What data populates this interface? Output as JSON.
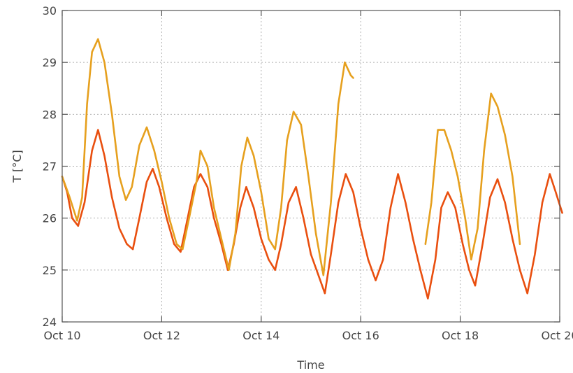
{
  "chart_data": {
    "type": "line",
    "title": "",
    "xlabel": "Time",
    "ylabel": "T [°C]",
    "xlim": [
      10,
      20
    ],
    "ylim": [
      24,
      30
    ],
    "x_ticks": [
      10,
      12,
      14,
      16,
      18,
      20
    ],
    "x_tick_labels": [
      "Oct 10",
      "Oct 12",
      "Oct 14",
      "Oct 16",
      "Oct 18",
      "Oct 20"
    ],
    "y_ticks": [
      24,
      25,
      26,
      27,
      28,
      29,
      30
    ],
    "y_tick_labels": [
      "24",
      "25",
      "26",
      "27",
      "28",
      "29",
      "30"
    ],
    "grid": true,
    "series": [
      {
        "color": "#e94f0f",
        "points": [
          [
            10.0,
            26.8
          ],
          [
            10.1,
            26.5
          ],
          [
            10.2,
            26.0
          ],
          [
            10.32,
            25.85
          ],
          [
            10.45,
            26.3
          ],
          [
            10.6,
            27.3
          ],
          [
            10.72,
            27.7
          ],
          [
            10.85,
            27.2
          ],
          [
            11.0,
            26.4
          ],
          [
            11.15,
            25.8
          ],
          [
            11.3,
            25.5
          ],
          [
            11.42,
            25.4
          ],
          [
            11.55,
            26.0
          ],
          [
            11.7,
            26.7
          ],
          [
            11.82,
            26.95
          ],
          [
            11.95,
            26.6
          ],
          [
            12.1,
            26.0
          ],
          [
            12.25,
            25.5
          ],
          [
            12.38,
            25.35
          ],
          [
            12.5,
            25.9
          ],
          [
            12.65,
            26.6
          ],
          [
            12.78,
            26.85
          ],
          [
            12.92,
            26.6
          ],
          [
            13.05,
            26.0
          ],
          [
            13.2,
            25.5
          ],
          [
            13.33,
            25.0
          ],
          [
            13.45,
            25.5
          ],
          [
            13.58,
            26.2
          ],
          [
            13.7,
            26.6
          ],
          [
            13.85,
            26.2
          ],
          [
            14.0,
            25.6
          ],
          [
            14.15,
            25.2
          ],
          [
            14.28,
            25.0
          ],
          [
            14.4,
            25.5
          ],
          [
            14.55,
            26.3
          ],
          [
            14.7,
            26.6
          ],
          [
            14.85,
            26.0
          ],
          [
            15.0,
            25.3
          ],
          [
            15.15,
            24.9
          ],
          [
            15.28,
            24.55
          ],
          [
            15.4,
            25.3
          ],
          [
            15.55,
            26.3
          ],
          [
            15.7,
            26.85
          ],
          [
            15.85,
            26.5
          ],
          [
            16.0,
            25.8
          ],
          [
            16.15,
            25.2
          ],
          [
            16.3,
            24.8
          ],
          [
            16.45,
            25.2
          ],
          [
            16.6,
            26.2
          ],
          [
            16.75,
            26.85
          ],
          [
            16.9,
            26.3
          ],
          [
            17.05,
            25.6
          ],
          [
            17.2,
            25.0
          ],
          [
            17.35,
            24.45
          ],
          [
            17.5,
            25.2
          ],
          [
            17.62,
            26.2
          ],
          [
            17.75,
            26.5
          ],
          [
            17.9,
            26.2
          ],
          [
            18.05,
            25.5
          ],
          [
            18.18,
            25.0
          ],
          [
            18.3,
            24.7
          ],
          [
            18.45,
            25.5
          ],
          [
            18.6,
            26.4
          ],
          [
            18.75,
            26.75
          ],
          [
            18.9,
            26.3
          ],
          [
            19.05,
            25.6
          ],
          [
            19.2,
            25.0
          ],
          [
            19.35,
            24.55
          ],
          [
            19.5,
            25.3
          ],
          [
            19.65,
            26.3
          ],
          [
            19.8,
            26.85
          ],
          [
            19.92,
            26.5
          ],
          [
            20.05,
            26.1
          ]
        ]
      },
      {
        "color": "#e6a01e",
        "points": [
          [
            10.0,
            26.8
          ],
          [
            10.15,
            26.4
          ],
          [
            10.3,
            25.95
          ],
          [
            10.4,
            26.4
          ],
          [
            10.5,
            28.2
          ],
          [
            10.6,
            29.2
          ],
          [
            10.72,
            29.45
          ],
          [
            10.85,
            29.0
          ],
          [
            11.0,
            28.0
          ],
          [
            11.15,
            26.8
          ],
          [
            11.28,
            26.35
          ],
          [
            11.4,
            26.6
          ],
          [
            11.55,
            27.4
          ],
          [
            11.7,
            27.75
          ],
          [
            11.85,
            27.3
          ],
          [
            12.0,
            26.7
          ],
          [
            12.15,
            26.0
          ],
          [
            12.3,
            25.5
          ],
          [
            12.42,
            25.4
          ],
          [
            12.55,
            26.0
          ],
          [
            12.7,
            26.7
          ],
          [
            12.78,
            27.3
          ],
          [
            12.92,
            27.0
          ],
          [
            13.05,
            26.2
          ],
          [
            13.2,
            25.6
          ],
          [
            13.35,
            25.0
          ],
          [
            13.48,
            25.7
          ],
          [
            13.6,
            27.0
          ],
          [
            13.72,
            27.55
          ],
          [
            13.85,
            27.2
          ],
          [
            14.0,
            26.5
          ],
          [
            14.15,
            25.6
          ],
          [
            14.28,
            25.4
          ],
          [
            14.4,
            26.2
          ],
          [
            14.52,
            27.5
          ],
          [
            14.65,
            28.05
          ],
          [
            14.8,
            27.8
          ],
          [
            14.95,
            26.8
          ],
          [
            15.1,
            25.7
          ],
          [
            15.25,
            24.9
          ],
          [
            15.4,
            26.3
          ],
          [
            15.55,
            28.2
          ],
          [
            15.68,
            29.0
          ],
          [
            15.8,
            28.75
          ],
          [
            15.85,
            28.7
          ],
          null,
          [
            17.3,
            25.5
          ],
          [
            17.42,
            26.3
          ],
          [
            17.55,
            27.7
          ],
          [
            17.68,
            27.7
          ],
          [
            17.82,
            27.3
          ],
          [
            17.95,
            26.8
          ],
          [
            18.1,
            26.0
          ],
          [
            18.22,
            25.2
          ],
          [
            18.35,
            25.8
          ],
          [
            18.48,
            27.3
          ],
          [
            18.62,
            28.4
          ],
          [
            18.75,
            28.15
          ],
          [
            18.9,
            27.6
          ],
          [
            19.05,
            26.8
          ],
          [
            19.2,
            25.5
          ]
        ]
      }
    ]
  }
}
